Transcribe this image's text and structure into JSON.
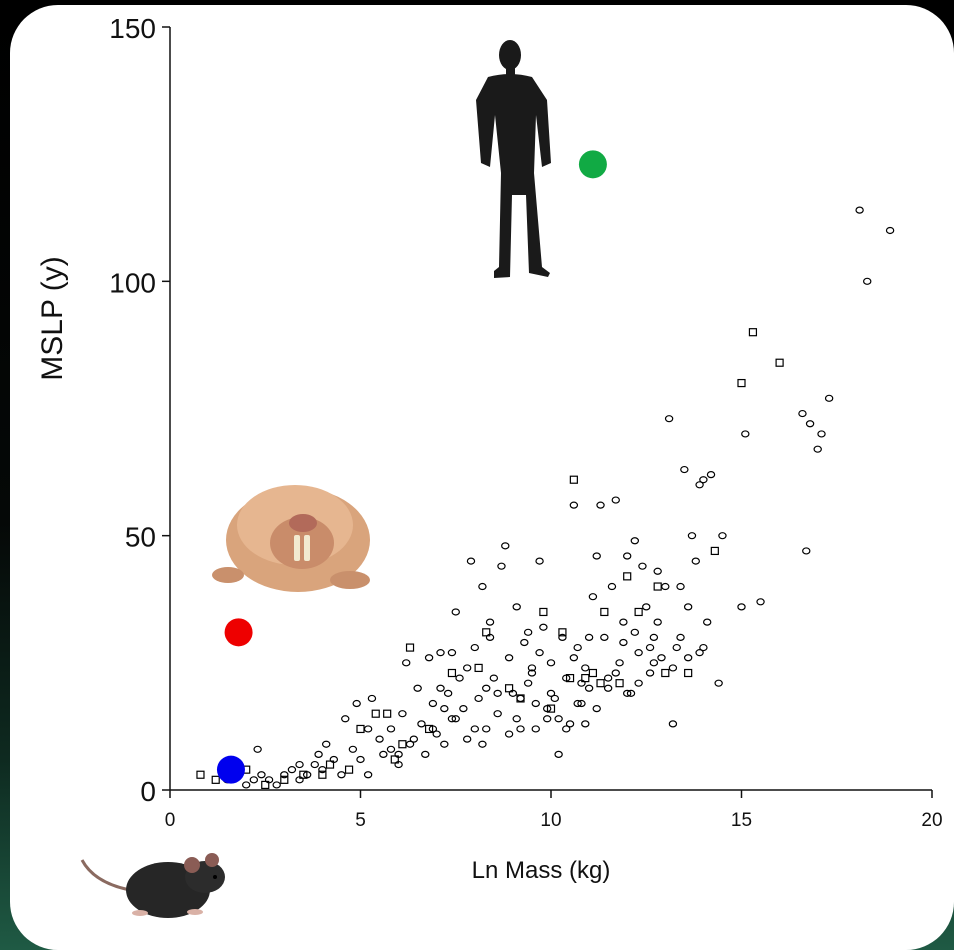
{
  "chart_data": {
    "type": "scatter",
    "xlabel": "Ln Mass (kg)",
    "ylabel": "MSLP (y)",
    "xlim": [
      0,
      20
    ],
    "ylim": [
      0,
      150
    ],
    "x_ticks": [
      "0",
      "5",
      "10",
      "15",
      "20"
    ],
    "y_ticks": [
      "0",
      "50",
      "100",
      "150"
    ],
    "grid": false,
    "series": [
      {
        "marker": "open-diamond",
        "color": "#000000",
        "points": [
          [
            1.5,
            2
          ],
          [
            1.8,
            3
          ],
          [
            2.0,
            1
          ],
          [
            2.2,
            2
          ],
          [
            2.4,
            3
          ],
          [
            2.6,
            2
          ],
          [
            2.8,
            1
          ],
          [
            3.0,
            3
          ],
          [
            3.2,
            4
          ],
          [
            3.4,
            2
          ],
          [
            3.6,
            3
          ],
          [
            3.8,
            5
          ],
          [
            4.0,
            4
          ],
          [
            4.1,
            9
          ],
          [
            4.3,
            6
          ],
          [
            4.5,
            3
          ],
          [
            4.6,
            14
          ],
          [
            4.8,
            8
          ],
          [
            5.0,
            6
          ],
          [
            5.2,
            3
          ],
          [
            5.3,
            18
          ],
          [
            5.5,
            10
          ],
          [
            5.6,
            7
          ],
          [
            5.8,
            12
          ],
          [
            6.0,
            5
          ],
          [
            6.1,
            15
          ],
          [
            6.2,
            25
          ],
          [
            6.3,
            9
          ],
          [
            6.5,
            20
          ],
          [
            6.6,
            13
          ],
          [
            6.7,
            7
          ],
          [
            6.8,
            26
          ],
          [
            6.9,
            17
          ],
          [
            7.0,
            11
          ],
          [
            7.1,
            27
          ],
          [
            7.2,
            9
          ],
          [
            7.3,
            19
          ],
          [
            7.4,
            14
          ],
          [
            7.5,
            35
          ],
          [
            7.6,
            22
          ],
          [
            7.7,
            16
          ],
          [
            7.8,
            10
          ],
          [
            7.9,
            45
          ],
          [
            8.0,
            28
          ],
          [
            8.1,
            18
          ],
          [
            8.2,
            40
          ],
          [
            8.3,
            12
          ],
          [
            8.4,
            33
          ],
          [
            8.5,
            22
          ],
          [
            8.6,
            15
          ],
          [
            8.7,
            44
          ],
          [
            8.8,
            48
          ],
          [
            8.9,
            26
          ],
          [
            9.0,
            19
          ],
          [
            9.1,
            36
          ],
          [
            9.2,
            12
          ],
          [
            9.3,
            29
          ],
          [
            9.4,
            21
          ],
          [
            9.5,
            24
          ],
          [
            9.6,
            17
          ],
          [
            9.7,
            45
          ],
          [
            9.8,
            32
          ],
          [
            9.9,
            14
          ],
          [
            10.0,
            25
          ],
          [
            10.1,
            18
          ],
          [
            10.2,
            7
          ],
          [
            10.3,
            30
          ],
          [
            10.4,
            22
          ],
          [
            10.5,
            13
          ],
          [
            10.6,
            56
          ],
          [
            10.7,
            28
          ],
          [
            10.8,
            17
          ],
          [
            10.9,
            24
          ],
          [
            11.0,
            20
          ],
          [
            11.1,
            38
          ],
          [
            11.2,
            46
          ],
          [
            11.3,
            56
          ],
          [
            11.4,
            30
          ],
          [
            11.5,
            22
          ],
          [
            11.6,
            40
          ],
          [
            11.7,
            57
          ],
          [
            11.8,
            25
          ],
          [
            11.9,
            33
          ],
          [
            12.0,
            46
          ],
          [
            12.1,
            19
          ],
          [
            12.2,
            49
          ],
          [
            12.3,
            27
          ],
          [
            12.4,
            44
          ],
          [
            12.5,
            36
          ],
          [
            12.6,
            23
          ],
          [
            12.7,
            30
          ],
          [
            12.8,
            43
          ],
          [
            12.9,
            26
          ],
          [
            13.0,
            40
          ],
          [
            13.1,
            73
          ],
          [
            13.2,
            13
          ],
          [
            13.3,
            28
          ],
          [
            13.4,
            40
          ],
          [
            13.5,
            63
          ],
          [
            13.6,
            36
          ],
          [
            13.7,
            50
          ],
          [
            13.8,
            45
          ],
          [
            13.9,
            60
          ],
          [
            14.0,
            61
          ],
          [
            14.1,
            33
          ],
          [
            14.2,
            62
          ],
          [
            14.4,
            21
          ],
          [
            14.5,
            50
          ],
          [
            15.0,
            36
          ],
          [
            15.1,
            70
          ],
          [
            15.5,
            37
          ],
          [
            16.6,
            74
          ],
          [
            16.7,
            47
          ],
          [
            16.8,
            72
          ],
          [
            17.0,
            67
          ],
          [
            17.1,
            70
          ],
          [
            17.3,
            77
          ],
          [
            18.1,
            114
          ],
          [
            18.3,
            100
          ],
          [
            18.9,
            110
          ],
          [
            8.3,
            20
          ],
          [
            8.6,
            19
          ],
          [
            9.2,
            18
          ],
          [
            9.5,
            23
          ],
          [
            10.0,
            19
          ],
          [
            10.8,
            21
          ],
          [
            11.5,
            20
          ],
          [
            12.3,
            21
          ],
          [
            7.5,
            14
          ],
          [
            8.0,
            12
          ],
          [
            6.4,
            10
          ],
          [
            5.8,
            8
          ],
          [
            9.9,
            16
          ],
          [
            10.4,
            12
          ],
          [
            11.2,
            16
          ],
          [
            12.7,
            25
          ],
          [
            13.6,
            26
          ],
          [
            13.9,
            27
          ],
          [
            14.0,
            28
          ],
          [
            7.2,
            16
          ],
          [
            8.9,
            11
          ],
          [
            9.7,
            27
          ],
          [
            10.9,
            13
          ],
          [
            11.7,
            23
          ],
          [
            12.2,
            31
          ],
          [
            6.0,
            7
          ],
          [
            5.2,
            12
          ],
          [
            4.9,
            17
          ],
          [
            3.9,
            7
          ],
          [
            3.4,
            5
          ],
          [
            2.3,
            8
          ],
          [
            9.4,
            31
          ],
          [
            11.0,
            30
          ],
          [
            12.6,
            28
          ],
          [
            7.8,
            24
          ],
          [
            8.4,
            30
          ],
          [
            10.6,
            26
          ],
          [
            12.0,
            19
          ],
          [
            13.2,
            24
          ],
          [
            6.9,
            12
          ],
          [
            7.1,
            20
          ],
          [
            9.1,
            14
          ],
          [
            10.7,
            17
          ],
          [
            11.9,
            29
          ],
          [
            8.2,
            9
          ],
          [
            9.6,
            12
          ],
          [
            12.8,
            33
          ],
          [
            13.4,
            30
          ],
          [
            10.2,
            14
          ],
          [
            7.4,
            27
          ]
        ]
      },
      {
        "marker": "open-square",
        "color": "#000000",
        "points": [
          [
            0.8,
            3
          ],
          [
            1.2,
            2
          ],
          [
            2.0,
            4
          ],
          [
            2.5,
            1
          ],
          [
            3.0,
            2
          ],
          [
            3.5,
            3
          ],
          [
            4.2,
            5
          ],
          [
            4.7,
            4
          ],
          [
            5.0,
            12
          ],
          [
            5.4,
            15
          ],
          [
            5.7,
            15
          ],
          [
            6.1,
            9
          ],
          [
            6.3,
            28
          ],
          [
            6.8,
            12
          ],
          [
            7.4,
            23
          ],
          [
            8.1,
            24
          ],
          [
            8.3,
            31
          ],
          [
            8.9,
            20
          ],
          [
            9.2,
            18
          ],
          [
            9.8,
            35
          ],
          [
            10.0,
            16
          ],
          [
            10.3,
            31
          ],
          [
            10.6,
            61
          ],
          [
            10.9,
            22
          ],
          [
            11.1,
            23
          ],
          [
            11.4,
            35
          ],
          [
            11.8,
            21
          ],
          [
            12.0,
            42
          ],
          [
            12.3,
            35
          ],
          [
            12.8,
            40
          ],
          [
            13.0,
            23
          ],
          [
            13.6,
            23
          ],
          [
            14.3,
            47
          ],
          [
            15.0,
            80
          ],
          [
            15.3,
            90
          ],
          [
            16.0,
            84
          ],
          [
            10.5,
            22
          ],
          [
            11.3,
            21
          ],
          [
            5.9,
            6
          ],
          [
            4.0,
            3
          ]
        ]
      },
      {
        "marker": "filled-circle",
        "color": "#0000ee",
        "points": [
          [
            1.6,
            4
          ]
        ]
      },
      {
        "marker": "filled-circle",
        "color": "#ee0000",
        "points": [
          [
            1.8,
            31
          ]
        ]
      },
      {
        "marker": "filled-circle",
        "color": "#11aa44",
        "points": [
          [
            11.1,
            123
          ]
        ]
      }
    ]
  },
  "colors": {
    "point_blue": "#0000ee",
    "point_red": "#ee0000",
    "point_green": "#11aa44",
    "axis": "#111111"
  },
  "images": [
    "human-silhouette-icon",
    "naked-mole-rat-image",
    "mouse-image"
  ]
}
